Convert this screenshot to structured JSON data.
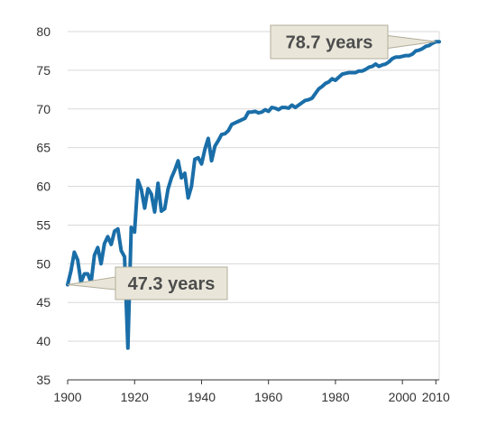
{
  "chart_data": {
    "type": "line",
    "title": "",
    "xlabel": "",
    "ylabel": "",
    "xlim": [
      1900,
      2011
    ],
    "ylim": [
      35,
      80
    ],
    "x_ticks": [
      1900,
      1920,
      1940,
      1960,
      1980,
      2000,
      2010
    ],
    "y_ticks": [
      35,
      40,
      45,
      50,
      55,
      60,
      65,
      70,
      75,
      80
    ],
    "grid": "horizontal",
    "line_color": "#1a6ea8",
    "series": [
      {
        "name": "",
        "x": [
          1900,
          1901,
          1902,
          1903,
          1904,
          1905,
          1906,
          1907,
          1908,
          1909,
          1910,
          1911,
          1912,
          1913,
          1914,
          1915,
          1916,
          1917,
          1918,
          1919,
          1920,
          1921,
          1922,
          1923,
          1924,
          1925,
          1926,
          1927,
          1928,
          1929,
          1930,
          1931,
          1932,
          1933,
          1934,
          1935,
          1936,
          1937,
          1938,
          1939,
          1940,
          1941,
          1942,
          1943,
          1944,
          1945,
          1946,
          1947,
          1948,
          1949,
          1950,
          1951,
          1952,
          1953,
          1954,
          1955,
          1956,
          1957,
          1958,
          1959,
          1960,
          1961,
          1962,
          1963,
          1964,
          1965,
          1966,
          1967,
          1968,
          1969,
          1970,
          1971,
          1972,
          1973,
          1974,
          1975,
          1976,
          1977,
          1978,
          1979,
          1980,
          1981,
          1982,
          1983,
          1984,
          1985,
          1986,
          1987,
          1988,
          1989,
          1990,
          1991,
          1992,
          1993,
          1994,
          1995,
          1996,
          1997,
          1998,
          1999,
          2000,
          2001,
          2002,
          2003,
          2004,
          2005,
          2006,
          2007,
          2008,
          2009,
          2010,
          2011
        ],
        "values": [
          47.3,
          49.1,
          51.5,
          50.5,
          47.6,
          48.7,
          48.7,
          47.6,
          51.1,
          52.1,
          50.0,
          52.6,
          53.5,
          52.5,
          54.2,
          54.5,
          51.7,
          50.9,
          39.1,
          54.7,
          54.1,
          60.8,
          59.6,
          57.2,
          59.7,
          59.0,
          56.7,
          60.4,
          56.8,
          57.1,
          59.7,
          61.1,
          62.1,
          63.3,
          61.1,
          61.7,
          58.5,
          60.0,
          63.5,
          63.7,
          62.9,
          64.8,
          66.2,
          63.3,
          65.2,
          65.9,
          66.7,
          66.8,
          67.2,
          68.0,
          68.2,
          68.4,
          68.6,
          68.8,
          69.6,
          69.6,
          69.7,
          69.5,
          69.6,
          69.9,
          69.7,
          70.2,
          70.1,
          69.9,
          70.2,
          70.2,
          70.1,
          70.5,
          70.2,
          70.5,
          70.8,
          71.1,
          71.2,
          71.4,
          72.0,
          72.6,
          72.9,
          73.3,
          73.5,
          73.9,
          73.7,
          74.1,
          74.5,
          74.6,
          74.7,
          74.7,
          74.7,
          74.9,
          74.9,
          75.1,
          75.4,
          75.5,
          75.8,
          75.5,
          75.7,
          75.8,
          76.1,
          76.5,
          76.7,
          76.7,
          76.8,
          76.9,
          76.9,
          77.1,
          77.5,
          77.6,
          77.8,
          78.1,
          78.2,
          78.5,
          78.7,
          78.7
        ]
      }
    ],
    "annotations": [
      {
        "text": "47.3 years",
        "x": 1900,
        "y": 47.3
      },
      {
        "text": "78.7 years",
        "x": 2010,
        "y": 78.7
      }
    ]
  }
}
